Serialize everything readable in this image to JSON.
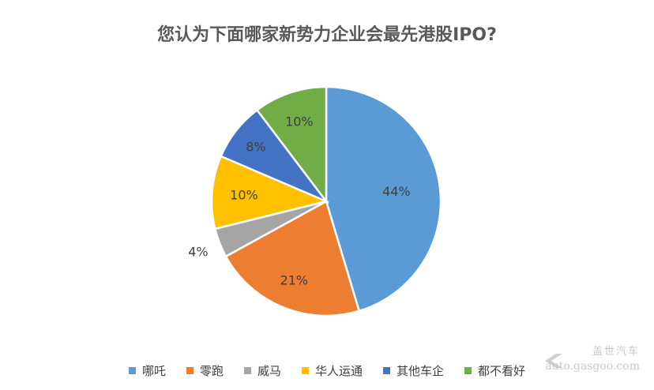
{
  "chart_data": {
    "type": "pie",
    "title": "您认为下面哪家新势力企业会最先港股IPO?",
    "categories": [
      "哪吒",
      "零跑",
      "威马",
      "华人运通",
      "其他车企",
      "都不看好"
    ],
    "values": [
      44,
      21,
      4,
      10,
      8,
      10
    ],
    "labels": [
      "44%",
      "21%",
      "4%",
      "10%",
      "8%",
      "10%"
    ],
    "colors": [
      "#5B9BD5",
      "#ED7D31",
      "#A5A5A5",
      "#FFC000",
      "#4472C4",
      "#70AD47"
    ],
    "legend_position": "bottom"
  },
  "watermark": {
    "cn": "盖世汽车",
    "en": "auto.gasgoo.com"
  }
}
